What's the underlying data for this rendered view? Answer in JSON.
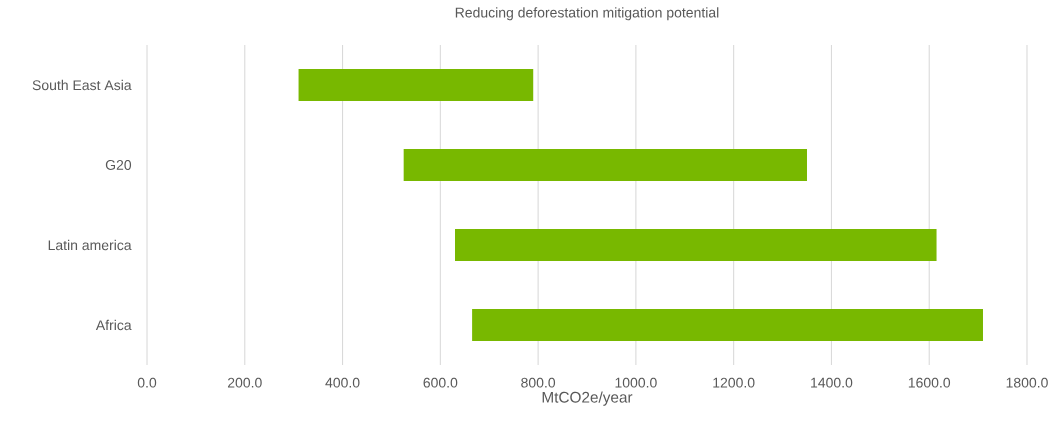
{
  "chart_data": {
    "type": "bar",
    "orientation": "horizontal",
    "title": "Reducing deforestation mitigation potential",
    "xlabel": "MtCO2e/year",
    "categories": [
      "South East Asia",
      "G20",
      "Latin america",
      "Africa"
    ],
    "base": [
      310,
      525,
      630,
      665
    ],
    "values": [
      480,
      825,
      985,
      1045
    ],
    "color": "#78b800",
    "xlim": [
      0,
      1800
    ],
    "xticks": [
      {
        "value": 0,
        "label": "0.0"
      },
      {
        "value": 200,
        "label": "200.0"
      },
      {
        "value": 400,
        "label": "400.0"
      },
      {
        "value": 600,
        "label": "600.0"
      },
      {
        "value": 800,
        "label": "800.0"
      },
      {
        "value": 1000,
        "label": "1000.0"
      },
      {
        "value": 1200,
        "label": "1200.0"
      },
      {
        "value": 1400,
        "label": "1400.0"
      },
      {
        "value": 1600,
        "label": "1600.0"
      },
      {
        "value": 1800,
        "label": "1800.0"
      }
    ],
    "grid": "x"
  }
}
